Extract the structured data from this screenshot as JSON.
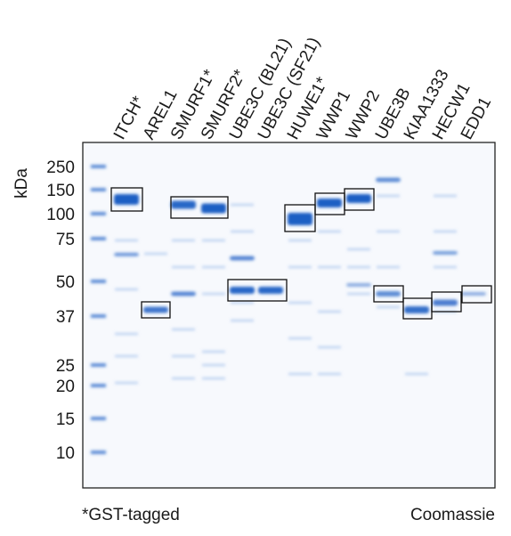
{
  "axis_label": "kDa",
  "markers": [
    250,
    150,
    100,
    75,
    50,
    37,
    25,
    20,
    15,
    10
  ],
  "lanes": [
    "ITCH*",
    "AREL1",
    "SMURF1*",
    "SMURF2*",
    "UBE3C (BL21)",
    "UBE3C (SF21)",
    "HUWE1*",
    "WWP1",
    "WWP2",
    "UBE3B",
    "KIAA1333",
    "HECW1",
    "EDD1"
  ],
  "footer": {
    "left": "*GST-tagged",
    "right": "Coomassie"
  }
}
